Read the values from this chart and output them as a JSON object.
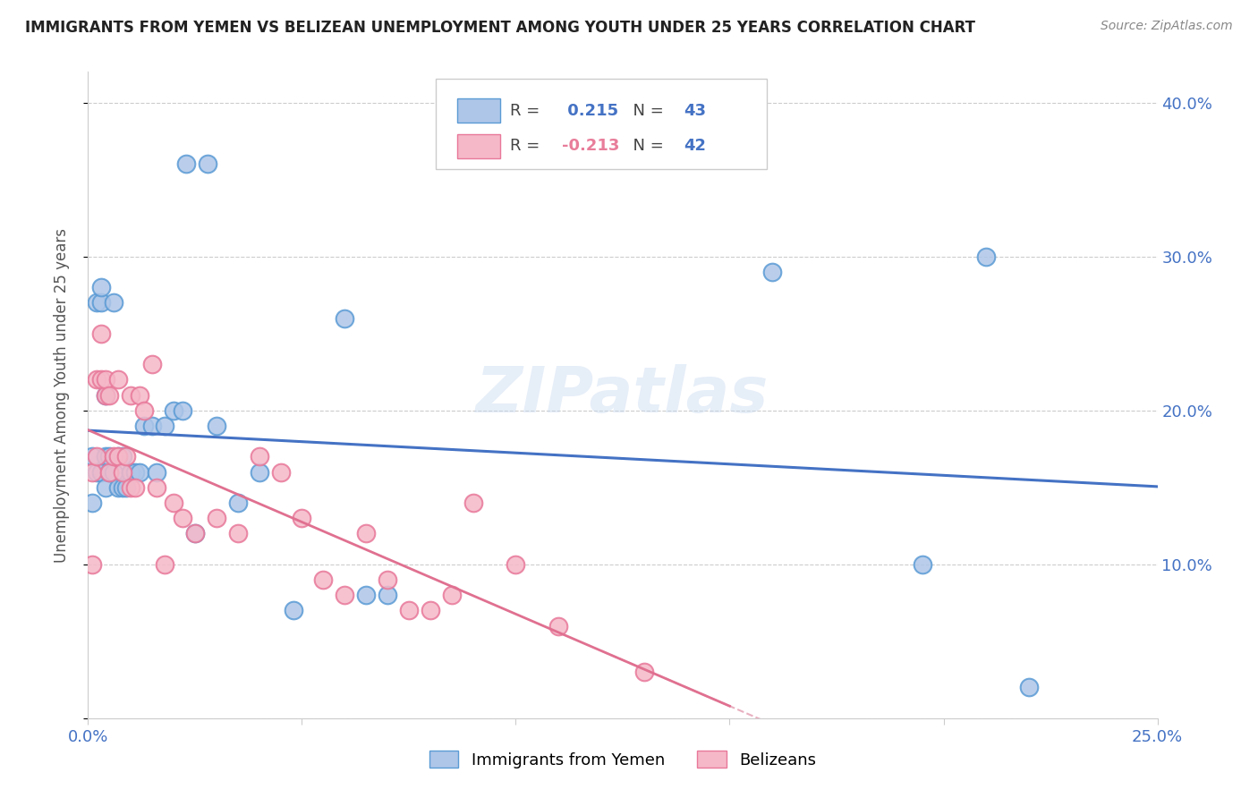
{
  "title": "IMMIGRANTS FROM YEMEN VS BELIZEAN UNEMPLOYMENT AMONG YOUTH UNDER 25 YEARS CORRELATION CHART",
  "source": "Source: ZipAtlas.com",
  "ylabel": "Unemployment Among Youth under 25 years",
  "xlim": [
    0,
    0.25
  ],
  "ylim": [
    0,
    0.42
  ],
  "xticks": [
    0.0,
    0.05,
    0.1,
    0.15,
    0.2,
    0.25
  ],
  "xticklabels_show": [
    "0.0%",
    "",
    "",
    "",
    "",
    "25.0%"
  ],
  "yticks": [
    0.0,
    0.1,
    0.2,
    0.3,
    0.4
  ],
  "yticklabels": [
    "",
    "10.0%",
    "20.0%",
    "30.0%",
    "40.0%"
  ],
  "legend_labels": [
    "Immigrants from Yemen",
    "Belizeans"
  ],
  "R_blue": 0.215,
  "N_blue": 43,
  "R_pink": -0.213,
  "N_pink": 42,
  "blue_color": "#aec6e8",
  "pink_color": "#f5b8c8",
  "blue_edge": "#5b9bd5",
  "pink_edge": "#e8789a",
  "blue_line_color": "#4472c4",
  "pink_line_color": "#e8a0b4",
  "watermark": "ZIPatlas",
  "blue_points_x": [
    0.001,
    0.001,
    0.002,
    0.002,
    0.003,
    0.003,
    0.003,
    0.004,
    0.004,
    0.004,
    0.005,
    0.005,
    0.006,
    0.006,
    0.007,
    0.007,
    0.008,
    0.008,
    0.009,
    0.01,
    0.01,
    0.011,
    0.012,
    0.013,
    0.015,
    0.016,
    0.018,
    0.02,
    0.022,
    0.025,
    0.03,
    0.035,
    0.04,
    0.048,
    0.06,
    0.065,
    0.07,
    0.16,
    0.195,
    0.21,
    0.22,
    0.023,
    0.028
  ],
  "blue_points_y": [
    0.14,
    0.17,
    0.16,
    0.27,
    0.27,
    0.28,
    0.16,
    0.15,
    0.21,
    0.17,
    0.16,
    0.17,
    0.27,
    0.16,
    0.15,
    0.17,
    0.15,
    0.17,
    0.15,
    0.16,
    0.16,
    0.16,
    0.16,
    0.19,
    0.19,
    0.16,
    0.19,
    0.2,
    0.2,
    0.12,
    0.19,
    0.14,
    0.16,
    0.07,
    0.26,
    0.08,
    0.08,
    0.29,
    0.1,
    0.3,
    0.02,
    0.36,
    0.36
  ],
  "pink_points_x": [
    0.001,
    0.001,
    0.002,
    0.002,
    0.003,
    0.003,
    0.004,
    0.004,
    0.005,
    0.005,
    0.006,
    0.007,
    0.007,
    0.008,
    0.009,
    0.01,
    0.01,
    0.011,
    0.012,
    0.013,
    0.015,
    0.016,
    0.018,
    0.02,
    0.022,
    0.025,
    0.03,
    0.035,
    0.04,
    0.045,
    0.05,
    0.055,
    0.06,
    0.065,
    0.07,
    0.075,
    0.08,
    0.085,
    0.09,
    0.1,
    0.11,
    0.13
  ],
  "pink_points_y": [
    0.16,
    0.1,
    0.17,
    0.22,
    0.22,
    0.25,
    0.21,
    0.22,
    0.16,
    0.21,
    0.17,
    0.17,
    0.22,
    0.16,
    0.17,
    0.15,
    0.21,
    0.15,
    0.21,
    0.2,
    0.23,
    0.15,
    0.1,
    0.14,
    0.13,
    0.12,
    0.13,
    0.12,
    0.17,
    0.16,
    0.13,
    0.09,
    0.08,
    0.12,
    0.09,
    0.07,
    0.07,
    0.08,
    0.14,
    0.1,
    0.06,
    0.03
  ]
}
